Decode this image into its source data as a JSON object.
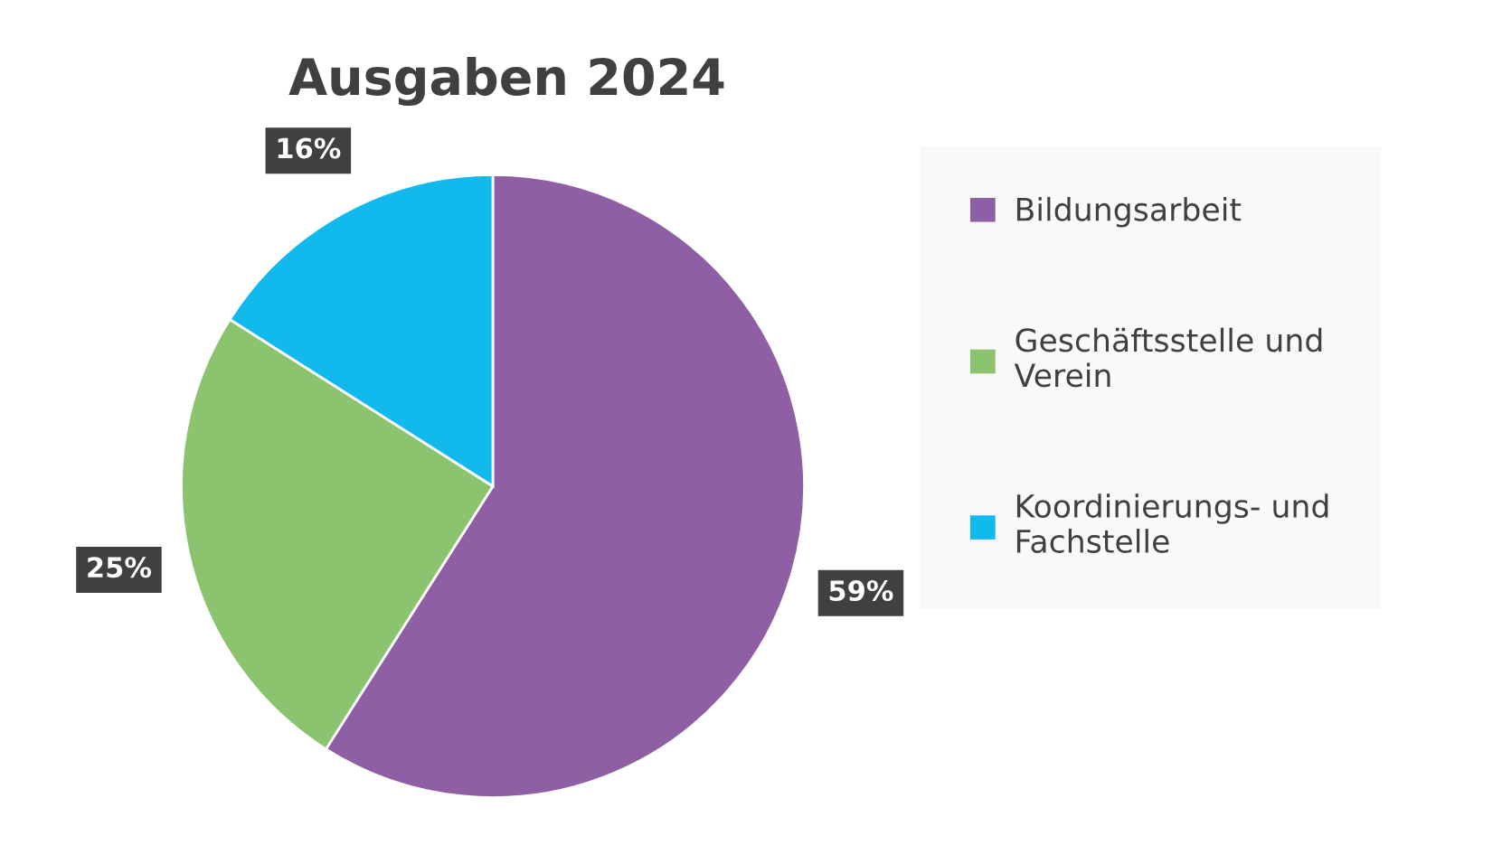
{
  "chart_data": {
    "type": "pie",
    "title": "Ausgaben 2024",
    "categories": [
      "Bildungsarbeit",
      "Geschäftsstelle und Verein",
      "Koordinierungs- und Fachstelle"
    ],
    "values": [
      59,
      25,
      16
    ],
    "colors": [
      "#8f5fa5",
      "#8cc36e",
      "#12b9ec"
    ],
    "value_labels": [
      "59%",
      "25%",
      "16%"
    ],
    "legend": "right"
  }
}
